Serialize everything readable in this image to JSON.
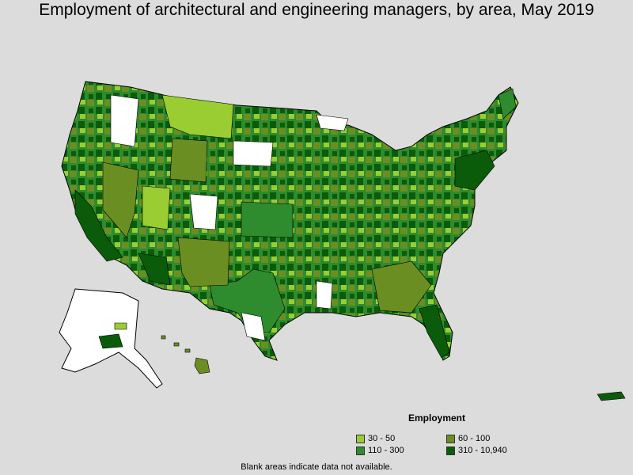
{
  "title": "Employment of architectural and engineering managers, by area, May 2019",
  "legend": {
    "title": "Employment",
    "items": [
      {
        "label": "30 - 50",
        "color": "#9acd32"
      },
      {
        "label": "60 - 100",
        "color": "#6b8e23"
      },
      {
        "label": "110 - 300",
        "color": "#2e8b2e"
      },
      {
        "label": "310 - 10,940",
        "color": "#0a5c0a"
      }
    ]
  },
  "note": "Blank areas indicate data not available.",
  "colors": {
    "background": "#dcdcdc",
    "no_data": "#ffffff",
    "border": "#000000"
  }
}
